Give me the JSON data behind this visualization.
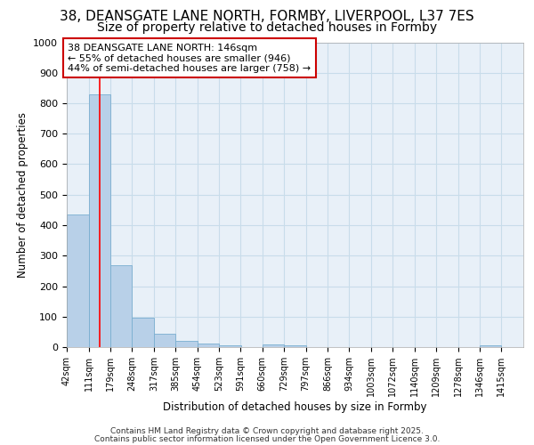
{
  "title_line1": "38, DEANSGATE LANE NORTH, FORMBY, LIVERPOOL, L37 7ES",
  "title_line2": "Size of property relative to detached houses in Formby",
  "xlabel": "Distribution of detached houses by size in Formby",
  "ylabel": "Number of detached properties",
  "bins": [
    42,
    111,
    179,
    248,
    317,
    385,
    454,
    523,
    591,
    660,
    729,
    797,
    866,
    934,
    1003,
    1072,
    1140,
    1209,
    1278,
    1346,
    1415
  ],
  "bin_labels": [
    "42sqm",
    "111sqm",
    "179sqm",
    "248sqm",
    "317sqm",
    "385sqm",
    "454sqm",
    "523sqm",
    "591sqm",
    "660sqm",
    "729sqm",
    "797sqm",
    "866sqm",
    "934sqm",
    "1003sqm",
    "1072sqm",
    "1140sqm",
    "1209sqm",
    "1278sqm",
    "1346sqm",
    "1415sqm"
  ],
  "counts": [
    435,
    830,
    270,
    95,
    45,
    20,
    12,
    5,
    0,
    10,
    5,
    0,
    0,
    0,
    0,
    0,
    0,
    0,
    0,
    5,
    0
  ],
  "bar_color": "#b8d0e8",
  "bar_edge_color": "#7aaed0",
  "red_line_x": 146,
  "annotation_line1": "38 DEANSGATE LANE NORTH: 146sqm",
  "annotation_line2": "← 55% of detached houses are smaller (946)",
  "annotation_line3": "44% of semi-detached houses are larger (758) →",
  "annotation_box_color": "#ffffff",
  "annotation_box_edge_color": "#cc0000",
  "ylim": [
    0,
    1000
  ],
  "yticks": [
    0,
    100,
    200,
    300,
    400,
    500,
    600,
    700,
    800,
    900,
    1000
  ],
  "grid_color": "#c8dcea",
  "bg_color": "#e8f0f8",
  "footer_line1": "Contains HM Land Registry data © Crown copyright and database right 2025.",
  "footer_line2": "Contains public sector information licensed under the Open Government Licence 3.0.",
  "title_fontsize": 11,
  "subtitle_fontsize": 10,
  "annotation_fontsize": 8
}
